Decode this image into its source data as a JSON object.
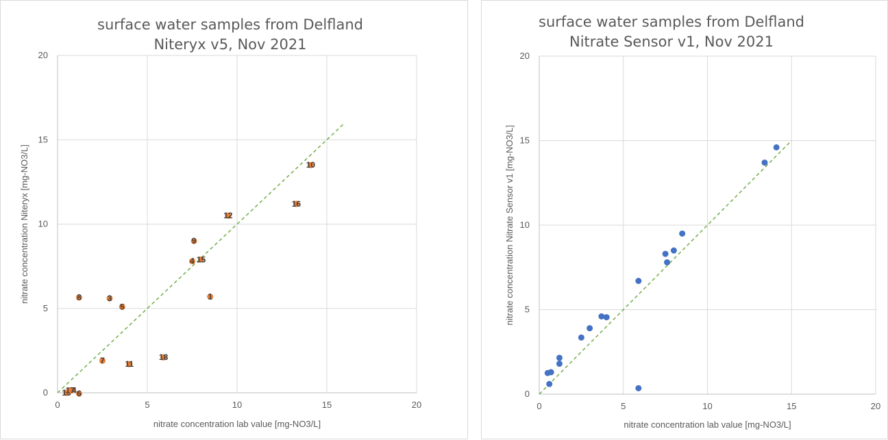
{
  "chart_data": [
    {
      "type": "scatter",
      "title": [
        "surface water samples from Delfland",
        "Niteryx v5, Nov 2021"
      ],
      "xlabel": "nitrate concentration lab value [mg-NO3/L]",
      "ylabel": "nitrate concentration Niteryx [mg-NO3/L]",
      "xlim": [
        0,
        20
      ],
      "ylim": [
        0,
        20
      ],
      "xticks": [
        0,
        5,
        10,
        15,
        20
      ],
      "yticks": [
        0,
        5,
        10,
        15,
        20
      ],
      "grid": true,
      "marker_color": "#ed7d31",
      "trendline": {
        "x": [
          0,
          16
        ],
        "y": [
          0,
          16
        ],
        "color": "#70ad47",
        "style": "dashed"
      },
      "points": [
        {
          "x": 8.5,
          "y": 5.7,
          "label": "1"
        },
        {
          "x": 0.5,
          "y": 0.0,
          "label": "2"
        },
        {
          "x": 2.9,
          "y": 5.6,
          "label": "3"
        },
        {
          "x": 7.5,
          "y": 7.8,
          "label": "4"
        },
        {
          "x": 3.6,
          "y": 5.1,
          "label": "5"
        },
        {
          "x": 1.2,
          "y": -0.05,
          "label": "6"
        },
        {
          "x": 2.5,
          "y": 1.9,
          "label": "7"
        },
        {
          "x": 1.2,
          "y": 5.65,
          "label": "8"
        },
        {
          "x": 7.6,
          "y": 9.0,
          "label": "9"
        },
        {
          "x": 14.1,
          "y": 13.5,
          "label": "10"
        },
        {
          "x": 4.0,
          "y": 1.7,
          "label": "11"
        },
        {
          "x": 9.5,
          "y": 10.5,
          "label": "12"
        },
        {
          "x": 0.5,
          "y": 0.0,
          "label": "13"
        },
        {
          "x": 0.8,
          "y": 0.15,
          "label": "14"
        },
        {
          "x": 8.0,
          "y": 7.9,
          "label": "15"
        },
        {
          "x": 13.3,
          "y": 11.2,
          "label": "16"
        },
        {
          "x": 0.7,
          "y": 0.15,
          "label": "17"
        },
        {
          "x": 5.9,
          "y": 2.1,
          "label": "18"
        }
      ]
    },
    {
      "type": "scatter",
      "title": [
        "surface water samples from Delfland",
        "Nitrate Sensor v1, Nov 2021"
      ],
      "xlabel": "nitrate concentration lab value [mg-NO3/L]",
      "ylabel": "nitrate concentration Nitrate Sensor v1 [mg-NO3/L]",
      "xlim": [
        0,
        20
      ],
      "ylim": [
        0,
        20
      ],
      "xticks": [
        0,
        5,
        10,
        15,
        20
      ],
      "yticks": [
        0,
        5,
        10,
        15,
        20
      ],
      "grid": true,
      "marker_color": "#4472c4",
      "trendline": {
        "x": [
          0,
          15
        ],
        "y": [
          0,
          15
        ],
        "color": "#70ad47",
        "style": "dashed"
      },
      "points": [
        {
          "x": 0.5,
          "y": 1.25
        },
        {
          "x": 0.7,
          "y": 1.3
        },
        {
          "x": 0.6,
          "y": 0.6
        },
        {
          "x": 1.2,
          "y": 1.8
        },
        {
          "x": 1.2,
          "y": 2.15
        },
        {
          "x": 2.5,
          "y": 3.35
        },
        {
          "x": 3.0,
          "y": 3.9
        },
        {
          "x": 3.7,
          "y": 4.6
        },
        {
          "x": 4.0,
          "y": 4.55
        },
        {
          "x": 5.9,
          "y": 6.7
        },
        {
          "x": 5.9,
          "y": 0.35
        },
        {
          "x": 7.5,
          "y": 8.3
        },
        {
          "x": 7.6,
          "y": 7.8
        },
        {
          "x": 8.0,
          "y": 8.5
        },
        {
          "x": 8.5,
          "y": 9.5
        },
        {
          "x": 13.4,
          "y": 13.7
        },
        {
          "x": 14.1,
          "y": 14.6
        }
      ]
    }
  ]
}
